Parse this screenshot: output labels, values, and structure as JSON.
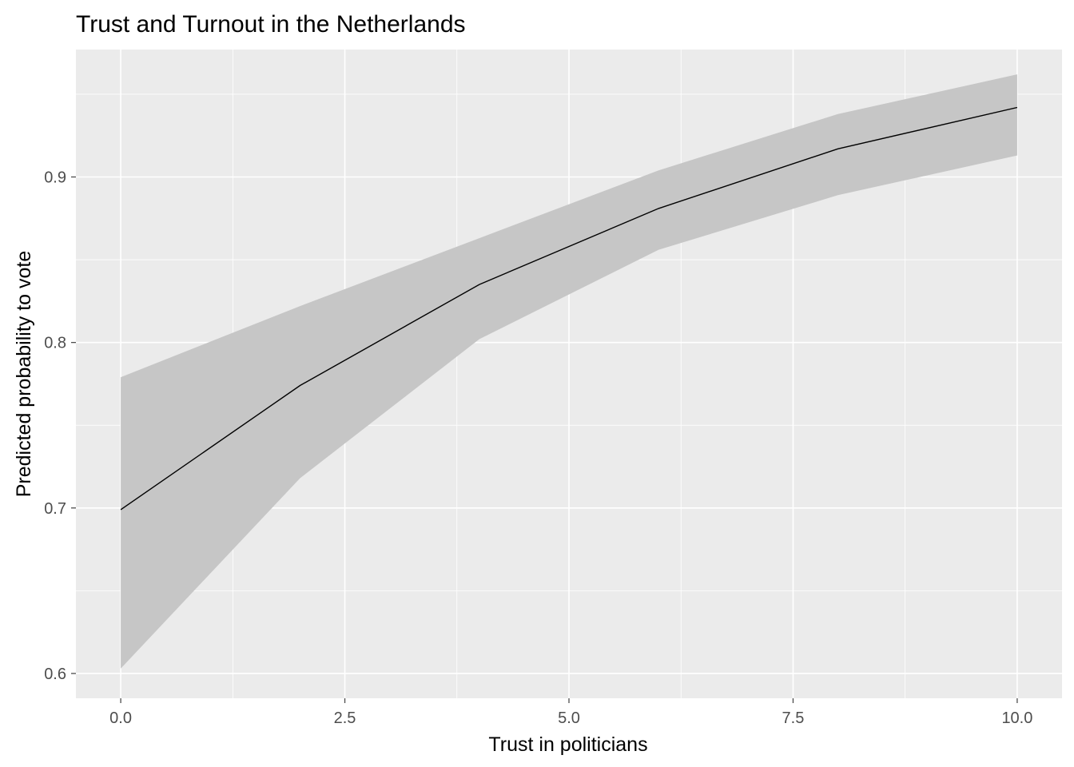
{
  "chart_data": {
    "type": "line",
    "title": "Trust and Turnout in the Netherlands",
    "xlabel": "Trust in politicians",
    "ylabel": "Predicted probability to vote",
    "xlim": [
      -0.5,
      10.5
    ],
    "ylim": [
      0.585,
      0.977
    ],
    "x_ticks": [
      0,
      2.5,
      5,
      7.5,
      10
    ],
    "x_tick_labels": [
      "0.0",
      "2.5",
      "5.0",
      "7.5",
      "10.0"
    ],
    "x_minor_ticks": [
      1.25,
      3.75,
      6.25,
      8.75
    ],
    "y_ticks": [
      0.6,
      0.7,
      0.8,
      0.9
    ],
    "y_tick_labels": [
      "0.6",
      "0.7",
      "0.8",
      "0.9"
    ],
    "y_minor_ticks": [
      0.65,
      0.75,
      0.85,
      0.95
    ],
    "grid": true,
    "series": [
      {
        "x": [
          0,
          2,
          4,
          6,
          8,
          10
        ],
        "y": [
          0.699,
          0.774,
          0.835,
          0.881,
          0.917,
          0.942
        ],
        "lower": [
          0.603,
          0.718,
          0.802,
          0.856,
          0.889,
          0.913
        ],
        "upper": [
          0.779,
          0.822,
          0.863,
          0.904,
          0.938,
          0.962
        ]
      }
    ],
    "colors": {
      "panel": "#ebebeb",
      "grid": "#ffffff",
      "ribbon": "#c6c6c6",
      "line": "#000000",
      "tick": "#4d4d4d"
    }
  }
}
